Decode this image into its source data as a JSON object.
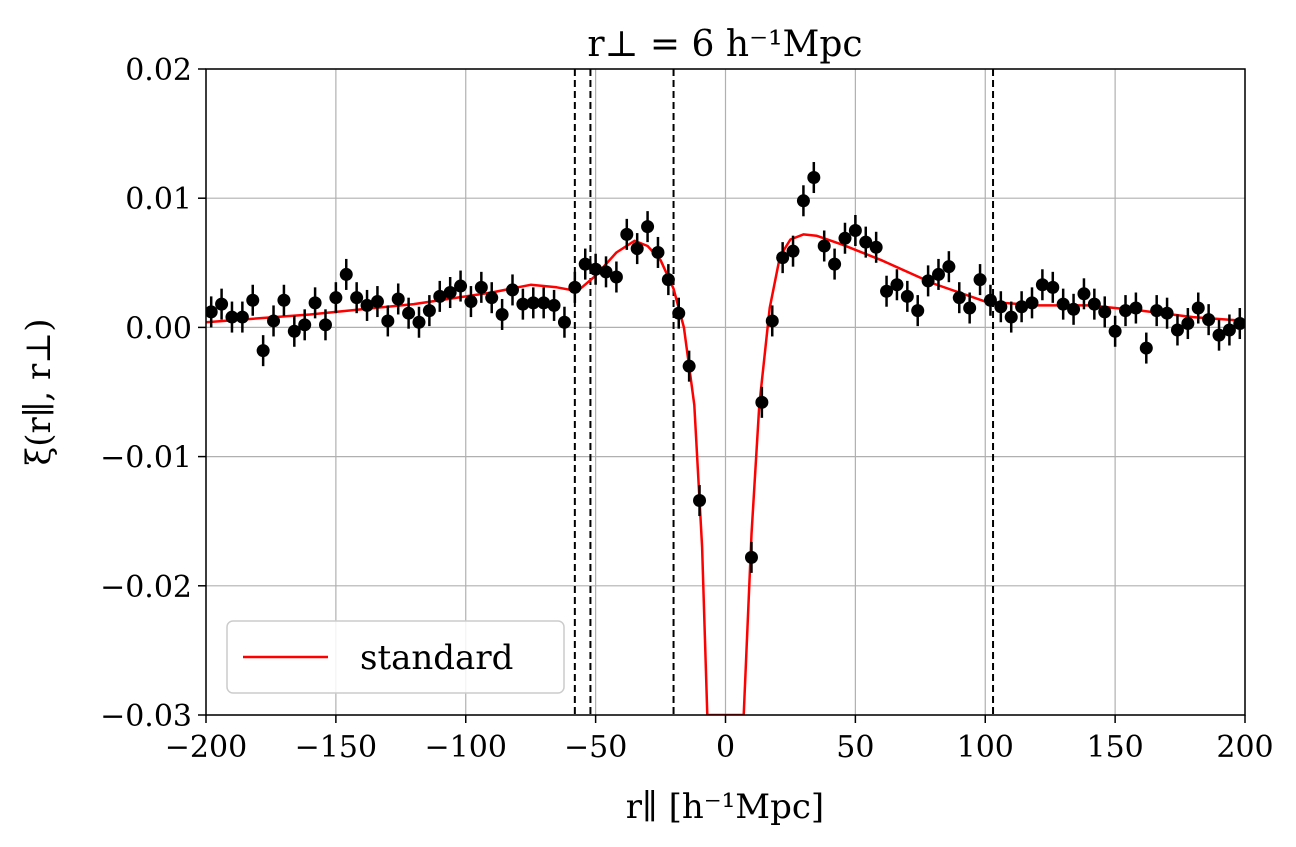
{
  "chart_data": {
    "type": "scatter",
    "title": "r⊥ = 6 h⁻¹Mpc",
    "xlabel": "r∥ [h⁻¹Mpc]",
    "ylabel": "ξ(r∥, r⊥)",
    "xlim": [
      -200,
      200
    ],
    "ylim": [
      -0.03,
      0.02
    ],
    "x_ticks": [
      -200,
      -150,
      -100,
      -50,
      0,
      50,
      100,
      150,
      200
    ],
    "x_tick_labels": [
      "−200",
      "−150",
      "−100",
      "−50",
      "0",
      "50",
      "100",
      "150",
      "200"
    ],
    "y_ticks": [
      -0.03,
      -0.02,
      -0.01,
      0.0,
      0.01,
      0.02
    ],
    "y_tick_labels": [
      "−0.03",
      "−0.02",
      "−0.01",
      "0.00",
      "0.01",
      "0.02"
    ],
    "grid": true,
    "legend": {
      "position": "lower-left",
      "entries": [
        {
          "label": "standard",
          "color": "#ff0000"
        }
      ]
    },
    "vertical_lines": [
      -58,
      -52,
      -20,
      103
    ],
    "colors": {
      "data": "#000000",
      "model": "#ff0000",
      "grid": "#b0b0b0"
    },
    "data_points": {
      "x": [
        -198,
        -194,
        -190,
        -186,
        -182,
        -178,
        -174,
        -170,
        -166,
        -162,
        -158,
        -154,
        -150,
        -146,
        -142,
        -138,
        -134,
        -130,
        -126,
        -122,
        -118,
        -114,
        -110,
        -106,
        -102,
        -98,
        -94,
        -90,
        -86,
        -82,
        -78,
        -74,
        -70,
        -66,
        -62,
        -58,
        -54,
        -50,
        -46,
        -42,
        -38,
        -34,
        -30,
        -26,
        -22,
        -18,
        -14,
        -10,
        10,
        14,
        18,
        22,
        26,
        30,
        34,
        38,
        42,
        46,
        50,
        54,
        58,
        62,
        66,
        70,
        74,
        78,
        82,
        86,
        90,
        94,
        98,
        102,
        106,
        110,
        114,
        118,
        122,
        126,
        130,
        134,
        138,
        142,
        146,
        150,
        154,
        158,
        162,
        166,
        170,
        174,
        178,
        182,
        186,
        190,
        194,
        198
      ],
      "y": [
        0.0012,
        0.0018,
        0.0008,
        0.0008,
        0.0021,
        -0.0018,
        0.0005,
        0.0021,
        -0.0003,
        0.0002,
        0.0019,
        0.0002,
        0.0023,
        0.0041,
        0.0023,
        0.0017,
        0.002,
        0.0005,
        0.0022,
        0.0011,
        0.0004,
        0.0013,
        0.0024,
        0.0027,
        0.0032,
        0.002,
        0.0031,
        0.0023,
        0.001,
        0.0029,
        0.0018,
        0.0019,
        0.0019,
        0.0017,
        0.0004,
        0.0031,
        0.0049,
        0.0045,
        0.0043,
        0.0039,
        0.0072,
        0.0061,
        0.0078,
        0.0058,
        0.0037,
        0.0011,
        -0.003,
        -0.0134,
        -0.0178,
        -0.0058,
        0.0005,
        0.0054,
        0.0059,
        0.0098,
        0.0116,
        0.0063,
        0.0049,
        0.0069,
        0.0075,
        0.0066,
        0.0062,
        0.0028,
        0.0033,
        0.0024,
        0.0013,
        0.0036,
        0.0041,
        0.0047,
        0.0023,
        0.0015,
        0.0037,
        0.0021,
        0.0016,
        0.0008,
        0.0016,
        0.0019,
        0.0033,
        0.0031,
        0.0018,
        0.0014,
        0.0026,
        0.0018,
        0.0012,
        -0.0003,
        0.0013,
        0.0015,
        -0.0016,
        0.0013,
        0.0011,
        -0.0002,
        0.0003,
        0.0015,
        0.0006,
        -0.0006,
        -0.0002,
        0.0003
      ],
      "yerr": 0.0012
    },
    "series": [
      {
        "name": "standard",
        "x": [
          -200,
          -160,
          -120,
          -90,
          -75,
          -65,
          -57,
          -50,
          -42,
          -35,
          -30,
          -25,
          -20,
          -16,
          -12,
          -9,
          -7,
          7,
          10,
          13,
          17,
          21,
          25,
          30,
          35,
          45,
          60,
          80,
          100,
          120,
          140,
          160,
          180,
          200
        ],
        "y": [
          0.0004,
          0.001,
          0.0018,
          0.0027,
          0.0033,
          0.0031,
          0.0028,
          0.004,
          0.0058,
          0.0067,
          0.0063,
          0.0052,
          0.003,
          0.0,
          -0.006,
          -0.017,
          -0.03,
          -0.03,
          -0.016,
          -0.006,
          0.0015,
          0.0055,
          0.0068,
          0.0072,
          0.0071,
          0.0064,
          0.0052,
          0.0034,
          0.002,
          0.0017,
          0.0017,
          0.0013,
          0.0008,
          0.0005
        ]
      }
    ]
  }
}
